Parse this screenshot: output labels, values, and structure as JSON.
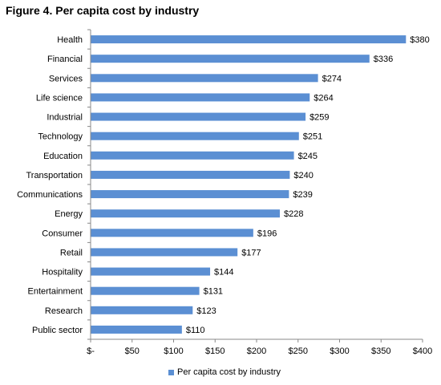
{
  "title": "Figure 4. Per capita cost by industry",
  "colors": {
    "bar": "#5b8fd3",
    "axis": "#888888",
    "text": "#000000"
  },
  "chart_data": {
    "type": "bar",
    "orientation": "horizontal",
    "categories": [
      "Health",
      "Financial",
      "Services",
      "Life science",
      "Industrial",
      "Technology",
      "Education",
      "Transportation",
      "Communications",
      "Energy",
      "Consumer",
      "Retail",
      "Hospitality",
      "Entertainment",
      "Research",
      "Public sector"
    ],
    "series": [
      {
        "name": "Per capita cost by industry",
        "values": [
          380,
          336,
          274,
          264,
          259,
          251,
          245,
          240,
          239,
          228,
          196,
          177,
          144,
          131,
          123,
          110
        ],
        "labels": [
          "$380",
          "$336",
          "$274",
          "$264",
          "$259",
          "$251",
          "$245",
          "$240",
          "$239",
          "$228",
          "$196",
          "$177",
          "$144",
          "$131",
          "$123",
          "$110"
        ]
      }
    ],
    "xlim": [
      0,
      400
    ],
    "x_ticks": [
      0,
      50,
      100,
      150,
      200,
      250,
      300,
      350,
      400
    ],
    "x_tick_labels": [
      "$-",
      "$50",
      "$100",
      "$150",
      "$200",
      "$250",
      "$300",
      "$350",
      "$400"
    ],
    "grid": false,
    "legend_position": "bottom-center"
  }
}
